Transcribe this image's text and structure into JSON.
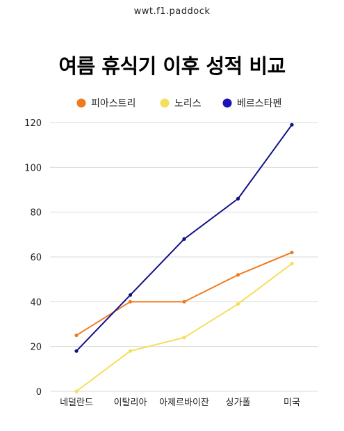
{
  "header": {
    "brand": "wwt.f1.paddock"
  },
  "chart_data": {
    "type": "line",
    "title": "여름 휴식기 이후 성적 비교",
    "categories": [
      "네덜란드",
      "이탈리아",
      "아제르바이잔",
      "싱가폴",
      "미국"
    ],
    "series": [
      {
        "name": "피아스트리",
        "color": "#F07A1F",
        "values": [
          25,
          40,
          40,
          52,
          62
        ]
      },
      {
        "name": "노리스",
        "color": "#F5DF5A",
        "values": [
          0,
          18,
          24,
          39,
          57
        ]
      },
      {
        "name": "베르스타펜",
        "color": "#10108A",
        "values": [
          18,
          43,
          68,
          86,
          119
        ]
      }
    ],
    "legend_marker_colors": [
      "#F07A1F",
      "#F5DF5A",
      "#1A14B8"
    ],
    "yticks": [
      0,
      20,
      40,
      60,
      80,
      100,
      120
    ],
    "ylim": [
      0,
      120
    ],
    "grid": true,
    "legend_position": "top-center",
    "xlabel": "",
    "ylabel": ""
  }
}
